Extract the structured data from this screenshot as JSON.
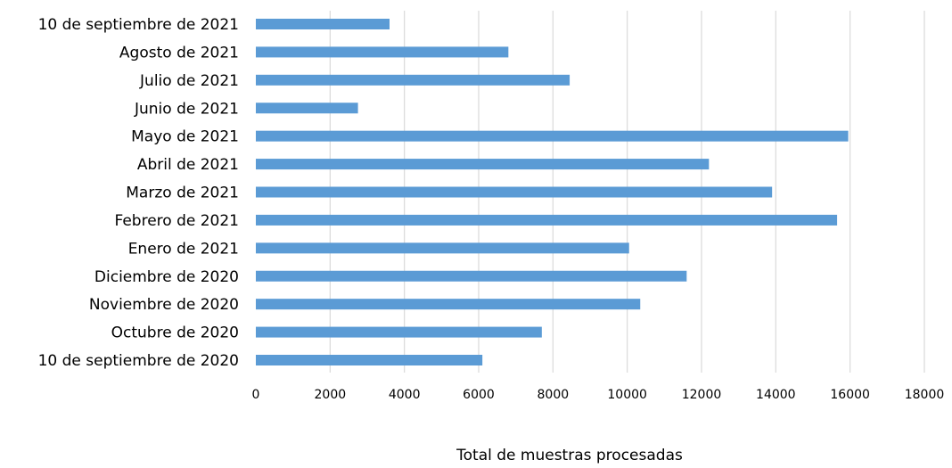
{
  "chart_data": {
    "type": "bar",
    "orientation": "horizontal",
    "categories": [
      "10 de septiembre de 2021",
      "Agosto de 2021",
      "Julio de 2021",
      "Junio de 2021",
      "Mayo de 2021",
      "Abril de 2021",
      "Marzo de 2021",
      "Febrero de 2021",
      "Enero de 2021",
      "Diciembre de 2020",
      "Noviembre de 2020",
      "Octubre de 2020",
      "10 de septiembre de 2020"
    ],
    "values": [
      3600,
      6800,
      8450,
      2750,
      15950,
      12200,
      13900,
      15650,
      10050,
      11600,
      10350,
      7700,
      6100
    ],
    "xlabel": "Total de muestras procesadas",
    "ylabel": "",
    "title": "",
    "xlim": [
      0,
      18000
    ],
    "xticks": [
      "0",
      "2000",
      "4000",
      "6000",
      "8000",
      "10000",
      "12000",
      "14000",
      "16000",
      "18000"
    ],
    "grid": "vertical",
    "legend": "none",
    "bar_color": "#5b9bd5",
    "grid_color": "#d9d9d9"
  }
}
